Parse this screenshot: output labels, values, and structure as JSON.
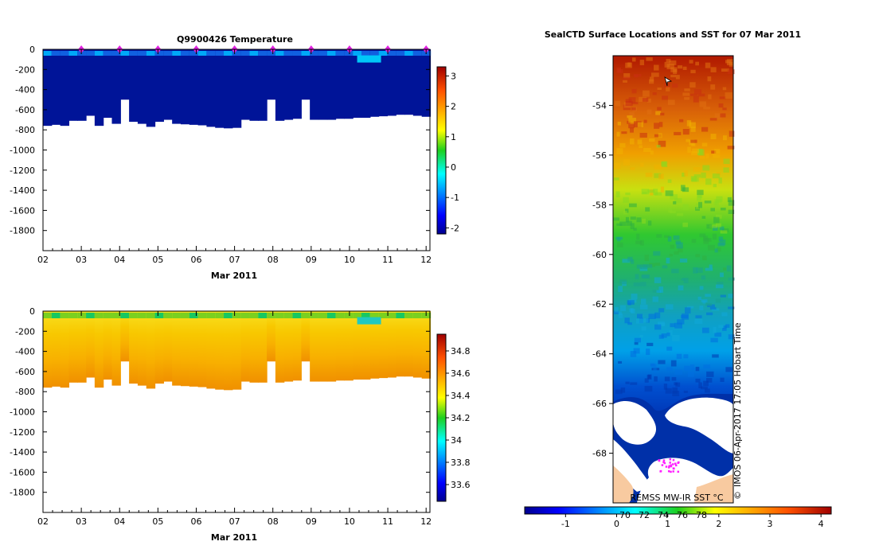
{
  "chart_data": [
    {
      "type": "heatmap",
      "title": "Q9900426  Temperature",
      "xlabel": "Mar 2011",
      "x_ticks": [
        "02",
        "03",
        "04",
        "05",
        "06",
        "07",
        "08",
        "09",
        "10",
        "11",
        "12"
      ],
      "y_ticks": [
        "0",
        "-200",
        "-400",
        "-600",
        "-800",
        "-1000",
        "-1200",
        "-1400",
        "-1600",
        "-1800"
      ],
      "ylim": [
        -2000,
        0
      ],
      "colorbar": {
        "min": -2.2,
        "max": 3.3,
        "ticks": [
          "3",
          "2",
          "1",
          "0",
          "-1",
          "-2"
        ],
        "tick_values": [
          3,
          2,
          1,
          0,
          -1,
          -2
        ]
      },
      "surface_value": -1.4,
      "deep_value": -1.9,
      "profile_max_depth": [
        760,
        750,
        760,
        710,
        710,
        660,
        760,
        680,
        740,
        500,
        720,
        740,
        770,
        720,
        700,
        740,
        745,
        750,
        755,
        770,
        780,
        785,
        780,
        700,
        710,
        710,
        500,
        710,
        700,
        690,
        500,
        700,
        700,
        700,
        690,
        690,
        680,
        680,
        670,
        665,
        660,
        650,
        650,
        660,
        670
      ],
      "marker_days": [
        3.0,
        4.0,
        5.0,
        6.0,
        7.0,
        8.0,
        9.0,
        10.0,
        11.0,
        12.0
      ]
    },
    {
      "type": "heatmap",
      "title": "",
      "xlabel": "Mar 2011",
      "x_ticks": [
        "02",
        "03",
        "04",
        "05",
        "06",
        "07",
        "08",
        "09",
        "10",
        "11",
        "12"
      ],
      "y_ticks": [
        "0",
        "-200",
        "-400",
        "-600",
        "-800",
        "-1000",
        "-1200",
        "-1400",
        "-1600",
        "-1800"
      ],
      "ylim": [
        -2000,
        0
      ],
      "colorbar": {
        "min": 33.45,
        "max": 34.95,
        "ticks": [
          "34.8",
          "34.6",
          "34.4",
          "34.2",
          "34",
          "33.8",
          "33.6"
        ],
        "tick_values": [
          34.8,
          34.6,
          34.4,
          34.2,
          34.0,
          33.8,
          33.6
        ]
      },
      "surface_value": 34.1,
      "deep_value": 34.6
    },
    {
      "type": "heatmap",
      "title": "SealCTD Surface Locations and SST for 07 Mar 2011",
      "y_ticks": [
        "-54",
        "-56",
        "-58",
        "-60",
        "-62",
        "-64",
        "-66",
        "-68"
      ],
      "y_tick_values": [
        -54,
        -56,
        -58,
        -60,
        -62,
        -64,
        -66,
        -68
      ],
      "ylim": [
        -70.0,
        -52.0
      ],
      "colorbar": {
        "min": -1.8,
        "max": 4.2,
        "ticks": [
          "-1",
          "0",
          "1",
          "2",
          "3",
          "4"
        ],
        "tick_values": [
          -1,
          0,
          1,
          2,
          3,
          4
        ]
      },
      "colorbar_overlay_labels": [
        "70",
        "72",
        "74",
        "76",
        "78"
      ],
      "source_label": "REMSS MW-IR SST °C",
      "credit": "IMOS 06-Apr-2017 17:05 Hobart Time",
      "copyright_symbol": "©"
    }
  ]
}
